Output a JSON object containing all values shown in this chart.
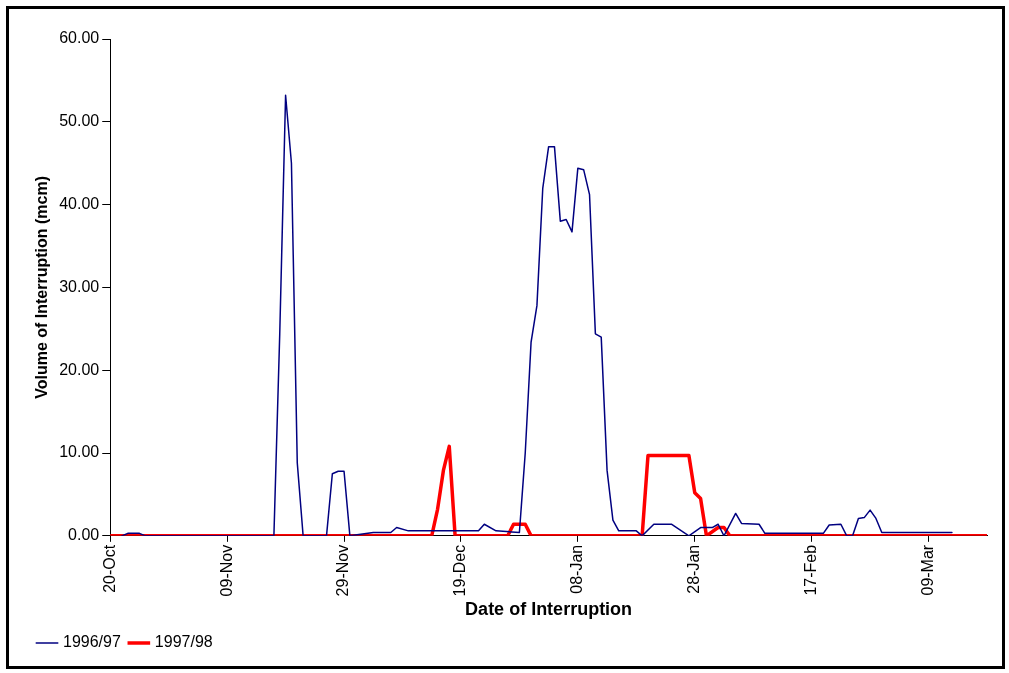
{
  "chart_data": {
    "type": "line",
    "xlabel": "Date of Interruption",
    "ylabel": "Volume of Interruption (mcm)",
    "xlim": [
      "1996-10-20",
      "1997-03-19"
    ],
    "xticks": [
      {
        "value": "1996-10-20",
        "label": "20-Oct"
      },
      {
        "value": "1996-11-09",
        "label": "09-Nov"
      },
      {
        "value": "1996-11-29",
        "label": "29-Nov"
      },
      {
        "value": "1996-12-19",
        "label": "19-Dec"
      },
      {
        "value": "1997-01-08",
        "label": "08-Jan"
      },
      {
        "value": "1997-01-28",
        "label": "28-Jan"
      },
      {
        "value": "1997-02-17",
        "label": "17-Feb"
      },
      {
        "value": "1997-03-09",
        "label": "09-Mar"
      }
    ],
    "ylim": [
      0,
      60
    ],
    "yticks": [
      {
        "value": 0,
        "label": "0.00"
      },
      {
        "value": 10,
        "label": "10.00"
      },
      {
        "value": 20,
        "label": "20.00"
      },
      {
        "value": 30,
        "label": "30.00"
      },
      {
        "value": 40,
        "label": "40.00"
      },
      {
        "value": 50,
        "label": "50.00"
      },
      {
        "value": 60,
        "label": "60.00"
      }
    ],
    "grid": false,
    "legend": "bottom left",
    "marker": "none",
    "line_style": "solid",
    "series": [
      {
        "name": "1996/97",
        "color": "#000080",
        "x": [
          "1996-10-22",
          "1996-10-23",
          "1996-10-25",
          "1996-10-26",
          "1996-11-17",
          "1996-11-18",
          "1996-11-19",
          "1996-11-20",
          "1996-11-21",
          "1996-11-22",
          "1996-11-26",
          "1996-11-27",
          "1996-11-28",
          "1996-11-29",
          "1996-11-30",
          "1996-12-04",
          "1996-12-07",
          "1996-12-08",
          "1996-12-10",
          "1996-12-22",
          "1996-12-23",
          "1996-12-25",
          "1996-12-29",
          "1996-12-30",
          "1996-12-31",
          "1997-01-01",
          "1997-01-02",
          "1997-01-03",
          "1997-01-04",
          "1997-01-05",
          "1997-01-06",
          "1997-01-07",
          "1997-01-08",
          "1997-01-09",
          "1997-01-10",
          "1997-01-11",
          "1997-01-12",
          "1997-01-13",
          "1997-01-14",
          "1997-01-15",
          "1997-01-18",
          "1997-01-19",
          "1997-01-21",
          "1997-01-24",
          "1997-01-27",
          "1997-01-29",
          "1997-01-31",
          "1997-02-01",
          "1997-02-02",
          "1997-02-04",
          "1997-02-05",
          "1997-02-08",
          "1997-02-09",
          "1997-02-19",
          "1997-02-20",
          "1997-02-22",
          "1997-02-23",
          "1997-02-24",
          "1997-02-25",
          "1997-02-26",
          "1997-02-27",
          "1997-02-28",
          "1997-03-01",
          "1997-03-13"
        ],
        "values": [
          0,
          0.3,
          0.3,
          0,
          0,
          24.4,
          53.2,
          45,
          8.8,
          0,
          0,
          7.5,
          7.8,
          7.8,
          0,
          0.4,
          0.4,
          1,
          0.6,
          0.6,
          1.4,
          0.6,
          0.4,
          10,
          23.4,
          27.8,
          42,
          47,
          47,
          38,
          38.2,
          36.7,
          44.4,
          44.2,
          41.2,
          24.4,
          24,
          7.9,
          1.9,
          0.6,
          0.6,
          0,
          1.4,
          1.4,
          0,
          1,
          1,
          1.4,
          0,
          2.7,
          1.5,
          1.4,
          0.3,
          0.3,
          1.3,
          1.4,
          0,
          0,
          2.1,
          2.2,
          3.1,
          2.1,
          0.4,
          0.4
        ]
      },
      {
        "name": "1997/98",
        "color": "#ff0000",
        "x": [
          "1996-10-20",
          "1996-12-14",
          "1996-12-15",
          "1996-12-16",
          "1996-12-17",
          "1996-12-18",
          "1996-12-27",
          "1996-12-28",
          "1996-12-30",
          "1996-12-31",
          "1997-01-19",
          "1997-01-20",
          "1997-01-27",
          "1997-01-28",
          "1997-01-29",
          "1997-01-30",
          "1997-02-01",
          "1997-02-02",
          "1997-02-03",
          "1997-03-19"
        ],
        "values": [
          0,
          0,
          3.2,
          7.9,
          10.8,
          0,
          0,
          1.4,
          1.4,
          0,
          0,
          9.7,
          9.7,
          5.2,
          4.5,
          0,
          1,
          1,
          0,
          0
        ]
      }
    ]
  }
}
